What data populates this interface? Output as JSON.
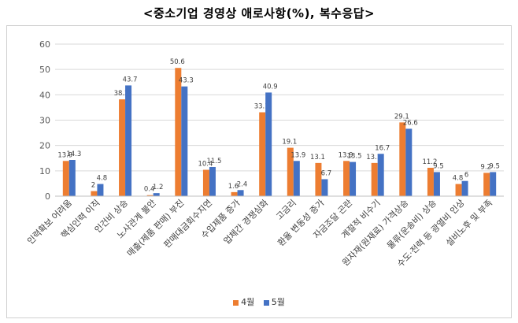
{
  "title": "<중소기업 경영상 애로사항(%), 복수응답>",
  "colors": {
    "april": "#ED7D31",
    "may": "#4472C4",
    "grid": "#d9d9d9",
    "text": "#404040"
  },
  "chart_data": {
    "type": "bar",
    "title": "<중소기업 경영상 애로사항(%), 복수응답>",
    "xlabel": "",
    "ylabel": "",
    "ylim": [
      0,
      60
    ],
    "yticks": [
      0,
      10,
      20,
      30,
      40,
      50,
      60
    ],
    "grid": true,
    "legend_position": "bottom",
    "categories": [
      "인력확보 어려움",
      "핵심인력 이직",
      "인건비 상승",
      "노사관계 불안",
      "매출(제품 판매) 부진",
      "판매대금회수지연",
      "수입제품 증가",
      "업체간 경쟁심화",
      "고금리",
      "환율 변동성 증가",
      "자금조달 곤란",
      "계절적 비수기",
      "원자재(원재료) 가격상승",
      "물류(운송비) 상승",
      "수도·전력 등 광열비 인상",
      "설비노후 및 부족"
    ],
    "series": [
      {
        "name": "4월",
        "values": [
          13.9,
          2,
          38.2,
          0.4,
          50.6,
          10.4,
          1.6,
          33.1,
          19.1,
          13.1,
          13.9,
          13.1,
          29.1,
          11.2,
          4.8,
          9.2
        ]
      },
      {
        "name": "5월",
        "values": [
          14.3,
          4.8,
          43.7,
          1.2,
          43.3,
          11.5,
          2.4,
          40.9,
          13.9,
          6.7,
          13.5,
          16.7,
          26.6,
          9.5,
          6,
          9.5
        ]
      }
    ]
  }
}
